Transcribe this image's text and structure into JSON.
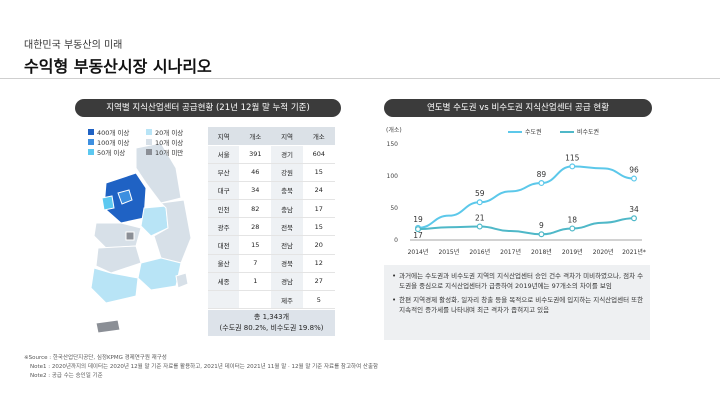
{
  "header": {
    "subtitle": "대한민국 부동산의 미래",
    "title": "수익형 부동산시장 시나리오"
  },
  "left_panel": {
    "title": "지역별 지식산업센터 공급현황 (21년 12월 말 누적 기준)",
    "legend": [
      {
        "label": "400개 이상",
        "color": "#1f62c4"
      },
      {
        "label": "100개 이상",
        "color": "#3d8fe0"
      },
      {
        "label": "50개 이상",
        "color": "#5cc8f0"
      },
      {
        "label": "20개 이상",
        "color": "#b8e4f6"
      },
      {
        "label": "10개 이상",
        "color": "#d7e0e8"
      },
      {
        "label": "10개 미만",
        "color": "#8b8f96"
      }
    ],
    "table": {
      "headers": [
        "지역",
        "개소",
        "지역",
        "개소"
      ],
      "rows": [
        [
          "서울",
          "391",
          "경기",
          "604"
        ],
        [
          "부산",
          "46",
          "강원",
          "15"
        ],
        [
          "대구",
          "34",
          "충북",
          "24"
        ],
        [
          "인천",
          "82",
          "충남",
          "17"
        ],
        [
          "광주",
          "28",
          "전북",
          "15"
        ],
        [
          "대전",
          "15",
          "전남",
          "20"
        ],
        [
          "울산",
          "7",
          "경북",
          "12"
        ],
        [
          "세종",
          "1",
          "경남",
          "27"
        ],
        [
          "",
          "",
          "제주",
          "5"
        ]
      ],
      "total_line1": "총 1,343개",
      "total_line2": "(수도권 80.2%, 비수도권 19.8%)"
    }
  },
  "right_panel": {
    "title": "연도별 수도권 vs 비수도권 지식산업센터 공급 현황",
    "bullets": [
      "과거에는 수도권과 비수도권 지역의 지식산업센터 승인 건수 격차가 미비하였으나, 점차 수도권을 중심으로 지식산업센터가 급증하여 2019년에는 97개소의 차이를 보임",
      "한편 지역경제 활성화, 일자리 창출 등을 목적으로 비수도권에 입지하는 지식산업센터 또한 지속적인 증가세를 나타내며 최근 격차가 좁혀지고 있음"
    ]
  },
  "chart_data": {
    "type": "line",
    "ylabel": "(개소)",
    "categories": [
      "2014년",
      "2015년",
      "2016년",
      "2017년",
      "2018년",
      "2019년",
      "2020년",
      "2021년*"
    ],
    "ylim": [
      0,
      150
    ],
    "yticks": [
      0,
      50,
      100,
      150
    ],
    "series": [
      {
        "name": "수도권",
        "color": "#5cc8ea",
        "values": [
          19,
          38,
          59,
          76,
          89,
          115,
          112,
          96
        ],
        "labels": {
          "0": "19",
          "2": "59",
          "4": "89",
          "5": "115",
          "7": "96"
        }
      },
      {
        "name": "비수도권",
        "color": "#4fb8c8",
        "values": [
          17,
          20,
          21,
          14,
          9,
          18,
          27,
          34
        ],
        "labels": {
          "0": "17",
          "2": "21",
          "4": "9",
          "5": "18",
          "7": "34"
        }
      }
    ],
    "legend_position": "top-right",
    "grid": false
  },
  "footnotes": [
    "※Source : 한국산업단지공단, 심정KPMG 경제연구원 재구성",
    "Note1 : 2020년까지의 데이터는 2020년 12월 말 기준 자료를 활용하고, 2021년 데이터는 2021년 11월 말 · 12월 말 기준 자료를 참고하여 산출함",
    "Note2 : 공급 수는 승인일 기준"
  ]
}
